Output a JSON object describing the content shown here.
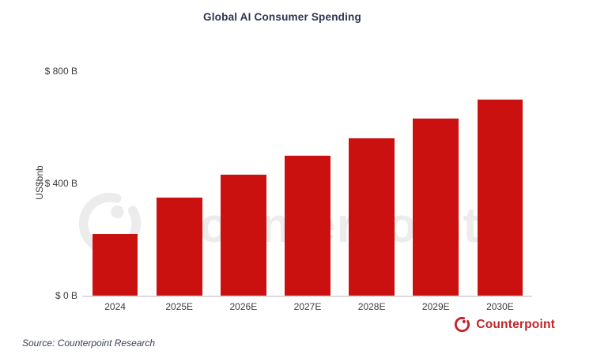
{
  "title": "Global AI Consumer Spending",
  "source": {
    "text": "Source: Counterpoint Research"
  },
  "branding": {
    "name": "Counterpoint",
    "icon": "counterpoint-dial-icon"
  },
  "watermark": {
    "text": "Counterpoint",
    "icon": "counterpoint-dial-icon"
  },
  "colors": {
    "bar": "#cb1010",
    "title": "#2e3452",
    "axis_text": "#3c3c3c",
    "axis_line": "#dcdcdc",
    "source_text": "#3a4055",
    "brand_red": "#c32429",
    "watermark_gray": "#ececec"
  },
  "chart_data": {
    "type": "bar",
    "title": "Global AI Consumer Spending",
    "categories": [
      "2024",
      "2025E",
      "2026E",
      "2027E",
      "2028E",
      "2029E",
      "2030E"
    ],
    "values": [
      220,
      350,
      430,
      500,
      560,
      630,
      700
    ],
    "unit": "US$ billions",
    "xlabel": "",
    "ylabel": "US$bnb",
    "ylim": [
      0,
      800
    ],
    "yticks": [
      {
        "value": 0,
        "label": "$ 0 B"
      },
      {
        "value": 400,
        "label": "$ 400 B"
      },
      {
        "value": 800,
        "label": "$ 800 B"
      }
    ],
    "grid": false,
    "legend": false,
    "bar_color": "#cb1010"
  }
}
